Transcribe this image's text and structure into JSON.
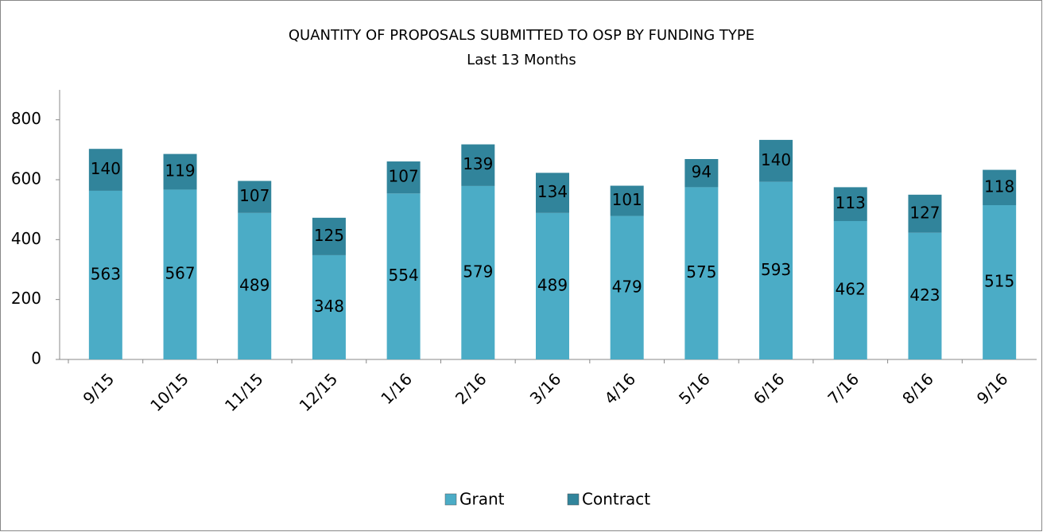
{
  "chart_data": {
    "type": "stacked_bar",
    "title": "QUANTITY OF PROPOSALS SUBMITTED TO OSP BY FUNDING TYPE",
    "subtitle": "Last 13 Months",
    "categories": [
      "9/15",
      "10/15",
      "11/15",
      "12/15",
      "1/16",
      "2/16",
      "3/16",
      "4/16",
      "5/16",
      "6/16",
      "7/16",
      "8/16",
      "9/16"
    ],
    "series": [
      {
        "name": "Grant",
        "color": "#4bacc6",
        "values": [
          563,
          567,
          489,
          348,
          554,
          579,
          489,
          479,
          575,
          593,
          462,
          423,
          515
        ]
      },
      {
        "name": "Contract",
        "color": "#31849b",
        "values": [
          140,
          119,
          107,
          125,
          107,
          139,
          134,
          101,
          94,
          140,
          113,
          127,
          118
        ]
      }
    ],
    "ylim": [
      0,
      900
    ],
    "yticks": [
      0,
      200,
      400,
      600,
      800
    ],
    "legend": "bottom"
  }
}
